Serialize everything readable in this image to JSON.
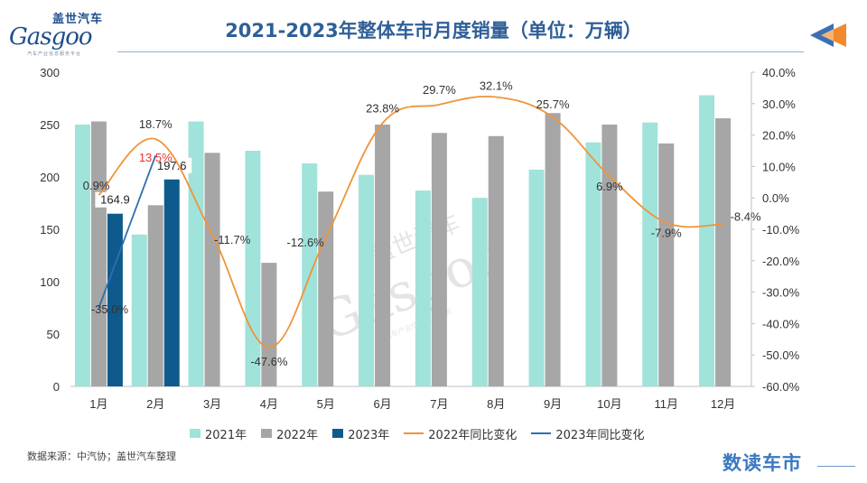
{
  "header": {
    "logo_cn": "盖世汽车",
    "logo_en": "Gasgoo",
    "logo_sub": "汽车产业信息服务平台",
    "title": "2021-2023年整体车市月度销量（单位：万辆）"
  },
  "footer": {
    "source": "数据来源：中汽协；盖世汽车整理",
    "brand": "数读车市"
  },
  "watermark": {
    "cn": "盖世汽车",
    "en": "Gasgoo",
    "sub": "汽车产业信息服务平台"
  },
  "colors": {
    "bar_2021": "#9fe3da",
    "bar_2022": "#a6a6a6",
    "bar_2023": "#0f5a8c",
    "line_2022": "#f0943a",
    "line_2023": "#2f6fb0",
    "title": "#2f5f97",
    "label_2023_highlight": "#e8322f"
  },
  "chart_data": {
    "type": "bar",
    "categories": [
      "1月",
      "2月",
      "3月",
      "4月",
      "5月",
      "6月",
      "7月",
      "8月",
      "9月",
      "10月",
      "11月",
      "12月"
    ],
    "ylim": [
      0,
      300
    ],
    "yticks": [
      "0",
      "50",
      "100",
      "150",
      "200",
      "250",
      "300"
    ],
    "y2lim": [
      -60,
      40
    ],
    "y2ticks": [
      "-60.0%",
      "-50.0%",
      "-40.0%",
      "-30.0%",
      "-20.0%",
      "-10.0%",
      "0.0%",
      "10.0%",
      "20.0%",
      "30.0%",
      "40.0%"
    ],
    "series": [
      {
        "name": "2021年",
        "kind": "bar",
        "values": [
          250,
          145,
          253,
          225,
          213,
          202,
          187,
          180,
          207,
          233,
          252,
          278
        ]
      },
      {
        "name": "2022年",
        "kind": "bar",
        "values": [
          253,
          173,
          223,
          118,
          186,
          250,
          242,
          239,
          261,
          250,
          232,
          256
        ]
      },
      {
        "name": "2023年",
        "kind": "bar",
        "values": [
          164.9,
          197.6,
          null,
          null,
          null,
          null,
          null,
          null,
          null,
          null,
          null,
          null
        ],
        "labels": [
          "164.9",
          "197.6"
        ]
      },
      {
        "name": "2022年同比变化",
        "kind": "line",
        "axis": "right",
        "values": [
          0.9,
          18.7,
          -11.7,
          -47.6,
          -12.6,
          23.8,
          29.7,
          32.1,
          25.7,
          6.9,
          -7.9,
          -8.4
        ],
        "labels": [
          "0.9%",
          "18.7%",
          "-11.7%",
          "-47.6%",
          "-12.6%",
          "23.8%",
          "29.7%",
          "32.1%",
          "25.7%",
          "6.9%",
          "-7.9%",
          "-8.4%"
        ]
      },
      {
        "name": "2023年同比变化",
        "kind": "line",
        "axis": "right",
        "values": [
          -35.0,
          13.5,
          null,
          null,
          null,
          null,
          null,
          null,
          null,
          null,
          null,
          null
        ],
        "labels": [
          "-35.0%",
          "13.5%"
        ]
      }
    ],
    "legend": "bottom"
  }
}
